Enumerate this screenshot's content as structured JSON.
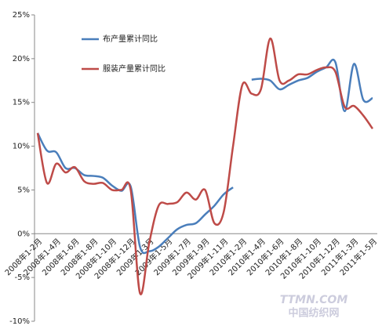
{
  "chart_data": {
    "type": "line",
    "categories": [
      "2008年1-2月",
      null,
      "2008年1-4月",
      null,
      "2008年1-6月",
      null,
      "2008年1-8月",
      null,
      "2008年1-10月",
      null,
      "2008年1-12月",
      null,
      "2009年1-3月",
      null,
      "2009年1-5月",
      null,
      "2009年1-7月",
      null,
      "2009年1-9月",
      null,
      "2009年1-11月",
      null,
      "2010年1-2月",
      null,
      "2010年1-4月",
      null,
      "2010年1-6月",
      null,
      "2010年1-8月",
      null,
      "2010年1-10月",
      null,
      "2010年1-12月",
      null,
      "2011年1-3月",
      null,
      "2011年1-5月"
    ],
    "series": [
      {
        "name": "布产量累计同比",
        "color": "#4a7ebb",
        "values": [
          11.5,
          9.5,
          9.3,
          7.5,
          7.5,
          6.7,
          6.6,
          6.4,
          5.5,
          4.9,
          5.4,
          -1.5,
          -2,
          -1.5,
          -0.5,
          0.5,
          1.0,
          1.2,
          2.2,
          3.2,
          4.5,
          5.3,
          null,
          17.6,
          17.7,
          17.5,
          16.5,
          17.0,
          17.5,
          17.8,
          18.5,
          19.0,
          19.6,
          14.0,
          19.4,
          15.3,
          15.5
        ]
      },
      {
        "name": "服装产量累计同比",
        "color": "#be4b48",
        "values": [
          11.5,
          5.8,
          8.0,
          7.0,
          7.6,
          6.0,
          5.7,
          5.8,
          5.0,
          5.0,
          5.0,
          -6.8,
          -1.0,
          3.2,
          3.4,
          3.6,
          4.7,
          3.9,
          5.0,
          1.2,
          2.5,
          10.0,
          17.0,
          16.0,
          16.5,
          22.3,
          17.5,
          17.5,
          18.2,
          18.2,
          18.7,
          19.0,
          18.5,
          14.5,
          14.6,
          13.5,
          12.0
        ]
      }
    ],
    "ylim": [
      -10,
      25
    ],
    "yticks": [
      {
        "value": -10,
        "label": "-10%"
      },
      {
        "value": -5,
        "label": "-5%"
      },
      {
        "value": 0,
        "label": "0%"
      },
      {
        "value": 5,
        "label": "5%"
      },
      {
        "value": 10,
        "label": "10%"
      },
      {
        "value": 15,
        "label": "15%"
      },
      {
        "value": 20,
        "label": "20%"
      },
      {
        "value": 25,
        "label": "25%"
      }
    ],
    "grid": false,
    "watermark": [
      "TTMN.COM",
      "中国纺织网"
    ]
  }
}
